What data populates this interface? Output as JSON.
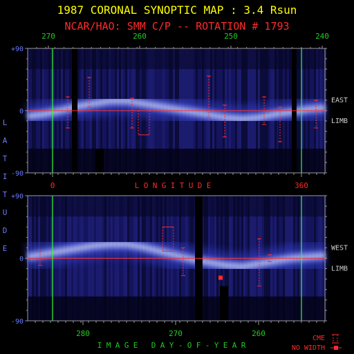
{
  "title": "1987 CORONAL SYNOPTIC MAP : 3.4 Rsun",
  "subtitle": "NCAR/HAO: SMM C/P -- ROTATION # 1793",
  "colors": {
    "title": "#ffff00",
    "subtitle": "#ff2a2a",
    "axis_blue": "#6a7cff",
    "axis_green": "#22cc22",
    "axis_red": "#ff2a2a",
    "equator": "#ff3030",
    "marker_lines": "#30ff30",
    "cme": "#ff2a2a",
    "frame": "#9a9a9a",
    "side_text": "#d0d0d0"
  },
  "chart_data": [
    {
      "type": "heatmap",
      "panel": "east-limb",
      "side_label": [
        "EAST",
        "LIMB"
      ],
      "ylabel": "LATITUDE",
      "ylim": [
        -90,
        90
      ],
      "y_ticks": [
        "+90",
        "0",
        "-90"
      ],
      "top_axis": {
        "label_values": [
          "270",
          "260",
          "250",
          "240"
        ]
      },
      "bottom_axis": {
        "label": "LONGITUDE",
        "label_values": [
          "0",
          "360"
        ]
      },
      "equator_line": 0,
      "band_latitude": [
        -8,
        -5,
        0,
        6,
        10,
        14,
        14,
        10,
        6,
        2,
        -2,
        -6,
        -10,
        -12,
        -10,
        -5,
        -2,
        2,
        4
      ],
      "cme_spans": [
        {
          "lat_top": 20,
          "lat_bottom": -25
        },
        {
          "lat_top": 48,
          "lat_bottom": 5
        },
        {
          "lat_top": 18,
          "lat_bottom": -25
        },
        {
          "lat_top": 0,
          "lat_bottom": -35
        },
        {
          "lat_top": 50,
          "lat_bottom": -10
        },
        {
          "lat_top": 8,
          "lat_bottom": -38
        },
        {
          "lat_top": 20,
          "lat_bottom": -20
        },
        {
          "lat_top": 5,
          "lat_bottom": -45
        },
        {
          "lat_top": 15,
          "lat_bottom": -25
        }
      ]
    },
    {
      "type": "heatmap",
      "panel": "west-limb",
      "side_label": [
        "WEST",
        "LIMB"
      ],
      "ylim": [
        -90,
        90
      ],
      "y_ticks": [
        "+90",
        "0",
        "-90"
      ],
      "bottom_axis": {
        "label": "IMAGE DAY-OF-YEAR",
        "label_values": [
          "280",
          "270",
          "260"
        ]
      },
      "equator_line": 0,
      "band_latitude": [
        2,
        6,
        10,
        14,
        18,
        20,
        20,
        16,
        10,
        4,
        -2,
        -6,
        -10,
        -12,
        -8,
        -4,
        0,
        2,
        4
      ],
      "cme_spans": [
        {
          "lat_top": 10,
          "lat_bottom": -10
        },
        {
          "lat_top": 45,
          "lat_bottom": 10
        },
        {
          "lat_top": 15,
          "lat_bottom": -25
        },
        {
          "lat_top": 28,
          "lat_bottom": -40
        },
        {
          "lat_top": 5,
          "lat_bottom": -5
        }
      ],
      "no_width_marker": {
        "lat": -28
      }
    }
  ],
  "legend": {
    "cme_label": "CME",
    "no_width_label": "NO WIDTH"
  }
}
